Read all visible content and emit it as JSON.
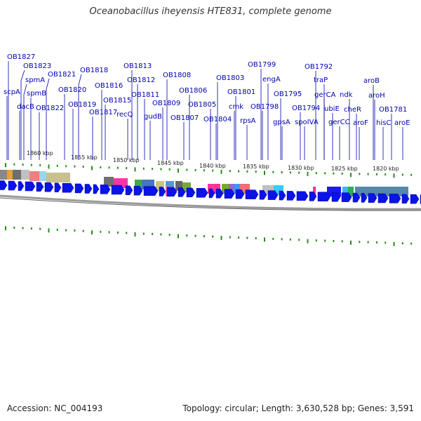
{
  "title": "Oceanobacillus iheyensis HTE831, complete genome",
  "footer": {
    "accession": "Accession: NC_004193",
    "summary": "Topology: circular; Length: 3,630,528 bp; Genes: 3,591"
  },
  "colors": {
    "label": "#0000b0",
    "leader": "#0000b0",
    "gene": "#0a14e6",
    "tick": "#2a8a1e",
    "backbone": "#8a8a8a"
  },
  "kbp_labels": [
    "1860 kbp",
    "1855 kbp",
    "1850 kbp",
    "1845 kbp",
    "1840 kbp",
    "1835 kbp",
    "1830 kbp",
    "1825 kbp",
    "1820 kbp"
  ],
  "gene_labels": [
    "OB1827",
    "OB1823",
    "OB1821",
    "OB1818",
    "OB1813",
    "OB1808",
    "OB1803",
    "OB1799",
    "OB1792",
    "spmA",
    "OB1816",
    "OB1812",
    "engA",
    "traP",
    "aroB",
    "scpA",
    "OB1820",
    "OB1811",
    "OB1806",
    "OB1801",
    "OB1795",
    "gerCA",
    "ndk",
    "aroH",
    "spmB",
    "OB1815",
    "dacB",
    "OB1822",
    "OB1819",
    "OB1817",
    "recQ",
    "gudB",
    "OB1809",
    "OB1805",
    "cmk",
    "OB1798",
    "OB1794",
    "ubiE",
    "cheR",
    "OB1781",
    "OB1807",
    "OB1804",
    "rpsA",
    "gpsA",
    "spoIVA",
    "gerCC",
    "aroF",
    "hisC",
    "aroE"
  ]
}
